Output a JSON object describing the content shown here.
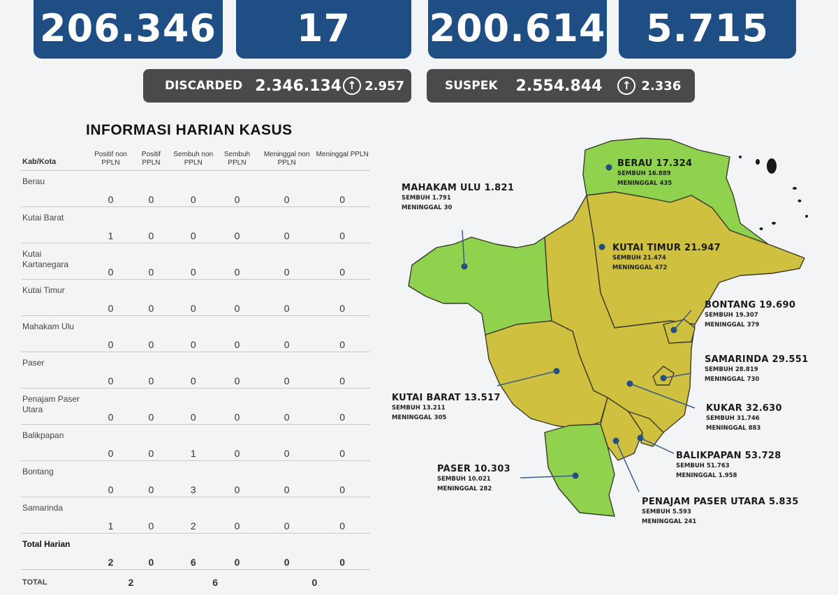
{
  "stats": {
    "confirmed": "206.346",
    "active": "17",
    "recovered": "200.614",
    "deaths": "5.715"
  },
  "pills": {
    "discarded": {
      "label": "DISCARDED",
      "value": "2.346.134",
      "delta": "2.957",
      "arrow": "↑"
    },
    "suspek": {
      "label": "SUSPEK",
      "value": "2.554.844",
      "delta": "2.336",
      "arrow": "↑"
    }
  },
  "table": {
    "title": "INFORMASI HARIAN KASUS",
    "headers": [
      "Kab/Kota",
      "Positif non PPLN",
      "Positif PPLN",
      "Sembuh non PPLN",
      "Sembuh PPLN",
      "Meninggal non PPLN",
      "Meninggal PPLN"
    ],
    "rows": [
      {
        "name": "Berau",
        "values": [
          "0",
          "0",
          "0",
          "0",
          "0",
          "0"
        ]
      },
      {
        "name": "Kutai Barat",
        "values": [
          "1",
          "0",
          "0",
          "0",
          "0",
          "0"
        ]
      },
      {
        "name": "Kutai Kartanegara",
        "values": [
          "0",
          "0",
          "0",
          "0",
          "0",
          "0"
        ]
      },
      {
        "name": "Kutai Timur",
        "values": [
          "0",
          "0",
          "0",
          "0",
          "0",
          "0"
        ]
      },
      {
        "name": "Mahakam Ulu",
        "values": [
          "0",
          "0",
          "0",
          "0",
          "0",
          "0"
        ]
      },
      {
        "name": "Paser",
        "values": [
          "0",
          "0",
          "0",
          "0",
          "0",
          "0"
        ]
      },
      {
        "name": "Penajam Paser Utara",
        "values": [
          "0",
          "0",
          "0",
          "0",
          "0",
          "0"
        ]
      },
      {
        "name": "Balikpapan",
        "values": [
          "0",
          "0",
          "1",
          "0",
          "0",
          "0"
        ]
      },
      {
        "name": "Bontang",
        "values": [
          "0",
          "0",
          "3",
          "0",
          "0",
          "0"
        ]
      },
      {
        "name": "Samarinda",
        "values": [
          "1",
          "0",
          "2",
          "0",
          "0",
          "0"
        ]
      }
    ],
    "total_harian": {
      "name": "Total Harian",
      "values": [
        "2",
        "0",
        "6",
        "0",
        "0",
        "0"
      ]
    },
    "total": {
      "name": "TOTAL",
      "positif": "2",
      "sembuh": "6",
      "meninggal": "0"
    }
  },
  "map": {
    "colors": {
      "green": "#8fd24d",
      "yellow": "#cfc13f",
      "border": "#3a3a2a",
      "dot": "#1f4e84"
    },
    "regions": [
      {
        "id": "berau",
        "title": "BERAU 17.324",
        "sembuh": "SEMBUH 16.889",
        "meninggal": "MENINGGAL 435"
      },
      {
        "id": "mahakam",
        "title": "MAHAKAM ULU 1.821",
        "sembuh": "SEMBUH 1.791",
        "meninggal": "MENINGGAL 30"
      },
      {
        "id": "kutim",
        "title": "KUTAI TIMUR 21.947",
        "sembuh": "SEMBUH 21.474",
        "meninggal": "MENINGGAL 472"
      },
      {
        "id": "bontang",
        "title": "BONTANG  19.690",
        "sembuh": "SEMBUH 19.307",
        "meninggal": "MENINGGAL 379"
      },
      {
        "id": "samarinda",
        "title": "SAMARINDA  29.551",
        "sembuh": "SEMBUH 28.819",
        "meninggal": "MENINGGAL 730"
      },
      {
        "id": "kubar",
        "title": "KUTAI BARAT 13.517",
        "sembuh": "SEMBUH 13.211",
        "meninggal": "MENINGGAL 305"
      },
      {
        "id": "kukar",
        "title": "KUKAR 32.630",
        "sembuh": "SEMBUH 31.746",
        "meninggal": "MENINGGAL 883"
      },
      {
        "id": "balikpapan",
        "title": "BALIKPAPAN  53.728",
        "sembuh": "SEMBUH 51.763",
        "meninggal": "MENINGGAL 1.958"
      },
      {
        "id": "paser",
        "title": "PASER  10.303",
        "sembuh": "SEMBUH 10.021",
        "meninggal": "MENINGGAL 282"
      },
      {
        "id": "ppu",
        "title": "PENAJAM PASER UTARA 5.835",
        "sembuh": "SEMBUH 5.593",
        "meninggal": "MENINGGAL 241"
      }
    ]
  }
}
